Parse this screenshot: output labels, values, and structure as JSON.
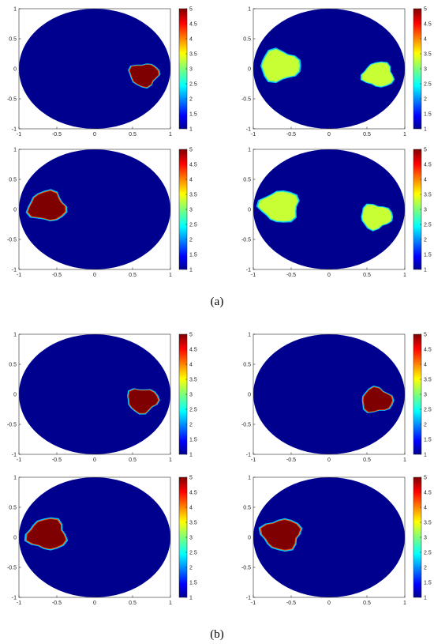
{
  "captions": [
    "(a)",
    "(b)"
  ],
  "colors": {
    "background_level": "#00008f",
    "high_level": "#7f0000",
    "medium_level": "#7dff7a",
    "axis": "#262626"
  },
  "chart_data": [
    {
      "type": "heatmap",
      "group": "(a)",
      "position": "top-left",
      "xlim": [
        -1,
        1
      ],
      "ylim": [
        -1,
        1
      ],
      "xticks": [
        "-1",
        "-0.5",
        "0",
        "0.5",
        "1"
      ],
      "yticks": [
        "-1",
        "-0.5",
        "0",
        "0.5",
        "1"
      ],
      "colorbar": {
        "range": [
          1,
          5
        ],
        "ticks": [
          "1",
          "1.5",
          "2",
          "2.5",
          "3",
          "3.5",
          "4",
          "4.5",
          "5"
        ]
      },
      "background_value": 1,
      "inclusions": [
        {
          "cx": 0.65,
          "cy": -0.1,
          "r": 0.18,
          "value": 5
        }
      ]
    },
    {
      "type": "heatmap",
      "group": "(a)",
      "position": "top-right",
      "xlim": [
        -1,
        1
      ],
      "ylim": [
        -1,
        1
      ],
      "xticks": [
        "-1",
        "-0.5",
        "0",
        "0.5",
        "1"
      ],
      "yticks": [
        "-1",
        "-0.5",
        "0",
        "0.5",
        "1"
      ],
      "colorbar": {
        "range": [
          1,
          5
        ],
        "ticks": [
          "1",
          "1.5",
          "2",
          "2.5",
          "3",
          "3.5",
          "4",
          "4.5",
          "5"
        ]
      },
      "background_value": 1,
      "inclusions": [
        {
          "cx": -0.65,
          "cy": 0.05,
          "r": 0.24,
          "value": 3.3
        },
        {
          "cx": 0.65,
          "cy": -0.1,
          "r": 0.19,
          "value": 3.3
        }
      ]
    },
    {
      "type": "heatmap",
      "group": "(a)",
      "position": "bottom-left",
      "xlim": [
        -1,
        1
      ],
      "ylim": [
        -1,
        1
      ],
      "xticks": [
        "-1",
        "-0.5",
        "0",
        "0.5",
        "1"
      ],
      "yticks": [
        "-1",
        "-0.5",
        "0",
        "0.5",
        "1"
      ],
      "colorbar": {
        "range": [
          1,
          5
        ],
        "ticks": [
          "1",
          "1.5",
          "2",
          "2.5",
          "3",
          "3.5",
          "4",
          "4.5",
          "5"
        ]
      },
      "background_value": 1,
      "inclusions": [
        {
          "cx": -0.63,
          "cy": 0.05,
          "r": 0.23,
          "value": 5
        }
      ]
    },
    {
      "type": "heatmap",
      "group": "(a)",
      "position": "bottom-right",
      "xlim": [
        -1,
        1
      ],
      "ylim": [
        -1,
        1
      ],
      "xticks": [
        "-1",
        "-0.5",
        "0",
        "0.5",
        "1"
      ],
      "yticks": [
        "-1",
        "-0.5",
        "0",
        "0.5",
        "1"
      ],
      "colorbar": {
        "range": [
          1,
          5
        ],
        "ticks": [
          "1",
          "1.5",
          "2",
          "2.5",
          "3",
          "3.5",
          "4",
          "4.5",
          "5"
        ]
      },
      "background_value": 1,
      "inclusions": [
        {
          "cx": -0.65,
          "cy": 0.05,
          "r": 0.24,
          "value": 3.3
        },
        {
          "cx": 0.62,
          "cy": -0.12,
          "r": 0.19,
          "value": 3.3
        }
      ]
    },
    {
      "type": "heatmap",
      "group": "(b)",
      "position": "top-left",
      "xlim": [
        -1,
        1
      ],
      "ylim": [
        -1,
        1
      ],
      "xticks": [
        "-1",
        "-0.5",
        "0",
        "0.5",
        "1"
      ],
      "yticks": [
        "-1",
        "-0.5",
        "0",
        "0.5",
        "1"
      ],
      "colorbar": {
        "range": [
          1,
          5
        ],
        "ticks": [
          "1",
          "1.5",
          "2",
          "2.5",
          "3",
          "3.5",
          "4",
          "4.5",
          "5"
        ]
      },
      "background_value": 1,
      "inclusions": [
        {
          "cx": 0.63,
          "cy": -0.1,
          "r": 0.19,
          "value": 5
        }
      ]
    },
    {
      "type": "heatmap",
      "group": "(b)",
      "position": "top-right",
      "xlim": [
        -1,
        1
      ],
      "ylim": [
        -1,
        1
      ],
      "xticks": [
        "-1",
        "-0.5",
        "0",
        "0.5",
        "1"
      ],
      "yticks": [
        "-1",
        "-0.5",
        "0",
        "0.5",
        "1"
      ],
      "colorbar": {
        "range": [
          1,
          5
        ],
        "ticks": [
          "1",
          "1.5",
          "2",
          "2.5",
          "3",
          "3.5",
          "4",
          "4.5",
          "5"
        ]
      },
      "background_value": 1,
      "inclusions": [
        {
          "cx": 0.63,
          "cy": -0.1,
          "r": 0.19,
          "value": 5
        }
      ]
    },
    {
      "type": "heatmap",
      "group": "(b)",
      "position": "bottom-left",
      "xlim": [
        -1,
        1
      ],
      "ylim": [
        -1,
        1
      ],
      "xticks": [
        "-1",
        "-0.5",
        "0",
        "0.5",
        "1"
      ],
      "yticks": [
        "-1",
        "-0.5",
        "0",
        "0.5",
        "1"
      ],
      "colorbar": {
        "range": [
          1,
          5
        ],
        "ticks": [
          "1",
          "1.5",
          "2",
          "2.5",
          "3",
          "3.5",
          "4",
          "4.5",
          "5"
        ]
      },
      "background_value": 1,
      "inclusions": [
        {
          "cx": -0.63,
          "cy": 0.05,
          "r": 0.24,
          "value": 5
        }
      ]
    },
    {
      "type": "heatmap",
      "group": "(b)",
      "position": "bottom-right",
      "xlim": [
        -1,
        1
      ],
      "ylim": [
        -1,
        1
      ],
      "xticks": [
        "-1",
        "-0.5",
        "0",
        "0.5",
        "1"
      ],
      "yticks": [
        "-1",
        "-0.5",
        "0",
        "0.5",
        "1"
      ],
      "colorbar": {
        "range": [
          1,
          5
        ],
        "ticks": [
          "1",
          "1.5",
          "2",
          "2.5",
          "3",
          "3.5",
          "4",
          "4.5",
          "5"
        ]
      },
      "background_value": 1,
      "inclusions": [
        {
          "cx": -0.63,
          "cy": 0.05,
          "r": 0.24,
          "value": 5
        }
      ]
    }
  ]
}
